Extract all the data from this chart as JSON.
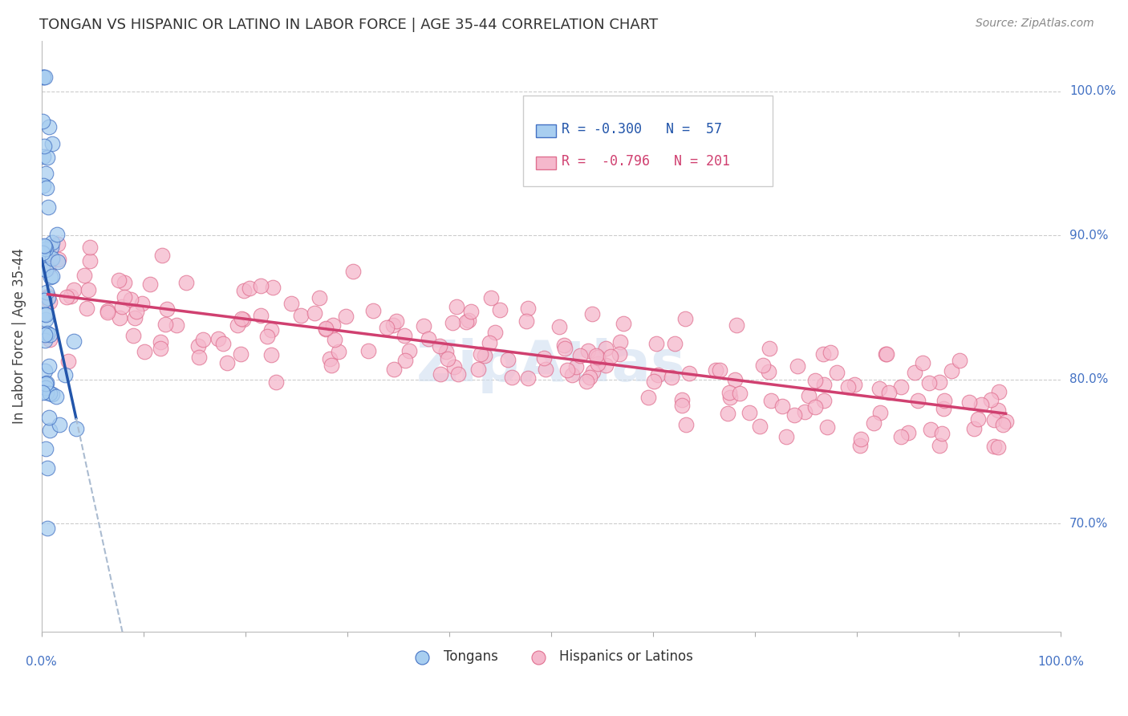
{
  "title": "TONGAN VS HISPANIC OR LATINO IN LABOR FORCE | AGE 35-44 CORRELATION CHART",
  "source": "Source: ZipAtlas.com",
  "ylabel": "In Labor Force | Age 35-44",
  "ytick_labels": [
    "70.0%",
    "80.0%",
    "90.0%",
    "100.0%"
  ],
  "ytick_values": [
    0.7,
    0.8,
    0.9,
    1.0
  ],
  "xlim": [
    0.0,
    1.0
  ],
  "ylim": [
    0.625,
    1.035
  ],
  "tongan_color": "#a8cef0",
  "hispanic_color": "#f5b8cc",
  "tongan_edge_color": "#4472c4",
  "hispanic_edge_color": "#e07090",
  "tongan_line_color": "#2255aa",
  "hispanic_line_color": "#d04070",
  "dashed_line_color": "#aabbd0",
  "background_color": "#ffffff",
  "grid_color": "#cccccc",
  "title_color": "#333333",
  "axis_label_color": "#4472c4",
  "legend_text_blue": "#2255aa",
  "legend_text_pink": "#d04070",
  "watermark_color": "#d0dff0"
}
